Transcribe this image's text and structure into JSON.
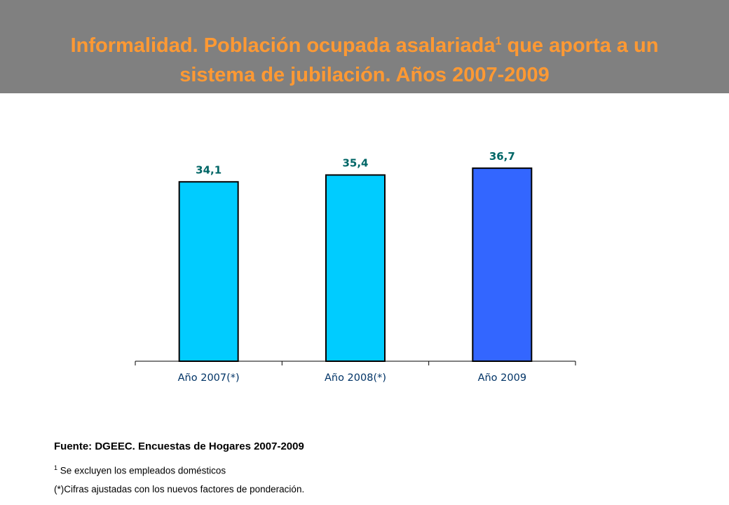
{
  "header": {
    "title_part1": "Informalidad. Población ocupada asalariada",
    "title_superscript": "1",
    "title_part2": " que aporta a un",
    "title_line2": "sistema de jubilación. Años 2007-2009"
  },
  "chart_data": {
    "type": "bar",
    "title": "",
    "xlabel": "",
    "ylabel": "",
    "categories": [
      "Año 2007(*)",
      "Año 2008(*)",
      "Año 2009"
    ],
    "values": [
      34.1,
      35.4,
      36.7
    ],
    "value_labels": [
      "34,1",
      "35,4",
      "36,7"
    ],
    "bar_colors": [
      "#00ccff",
      "#00ccff",
      "#3366ff"
    ],
    "label_color": "#006666",
    "ylim": [
      0,
      40
    ],
    "grid": false,
    "legend": "none"
  },
  "footer": {
    "source": "Fuente: DGEEC. Encuestas de Hogares 2007-2009",
    "note1_marker": "1",
    "note1_text": " Se excluyen los empleados domésticos",
    "note2": "(*)Cifras ajustadas con los nuevos factores de ponderación."
  }
}
